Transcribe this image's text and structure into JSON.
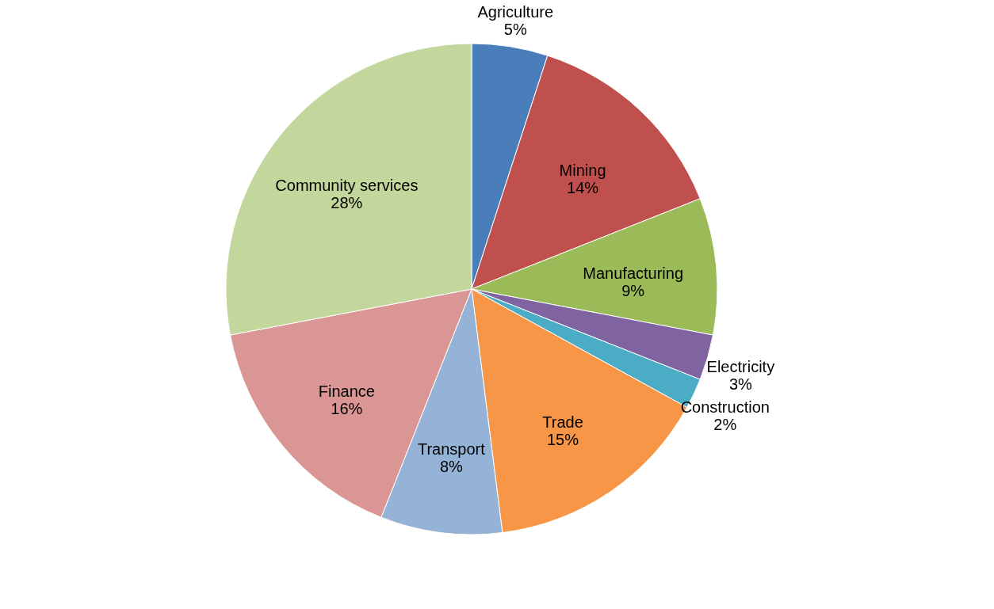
{
  "chart_data": {
    "type": "pie",
    "categories": [
      "Agriculture",
      "Mining",
      "Manufacturing",
      "Electricity",
      "Construction",
      "Trade",
      "Transport",
      "Finance",
      "Community services"
    ],
    "values": [
      5,
      14,
      9,
      3,
      2,
      15,
      8,
      16,
      28
    ],
    "value_labels": [
      "5%",
      "14%",
      "9%",
      "3%",
      "2%",
      "15%",
      "8%",
      "16%",
      "28%"
    ],
    "colors": [
      "#4a7ebb",
      "#c0504d",
      "#9bbb59",
      "#8064a2",
      "#4bacc6",
      "#f79646",
      "#95b3d7",
      "#d99694",
      "#c3d69b"
    ],
    "legend": false
  }
}
